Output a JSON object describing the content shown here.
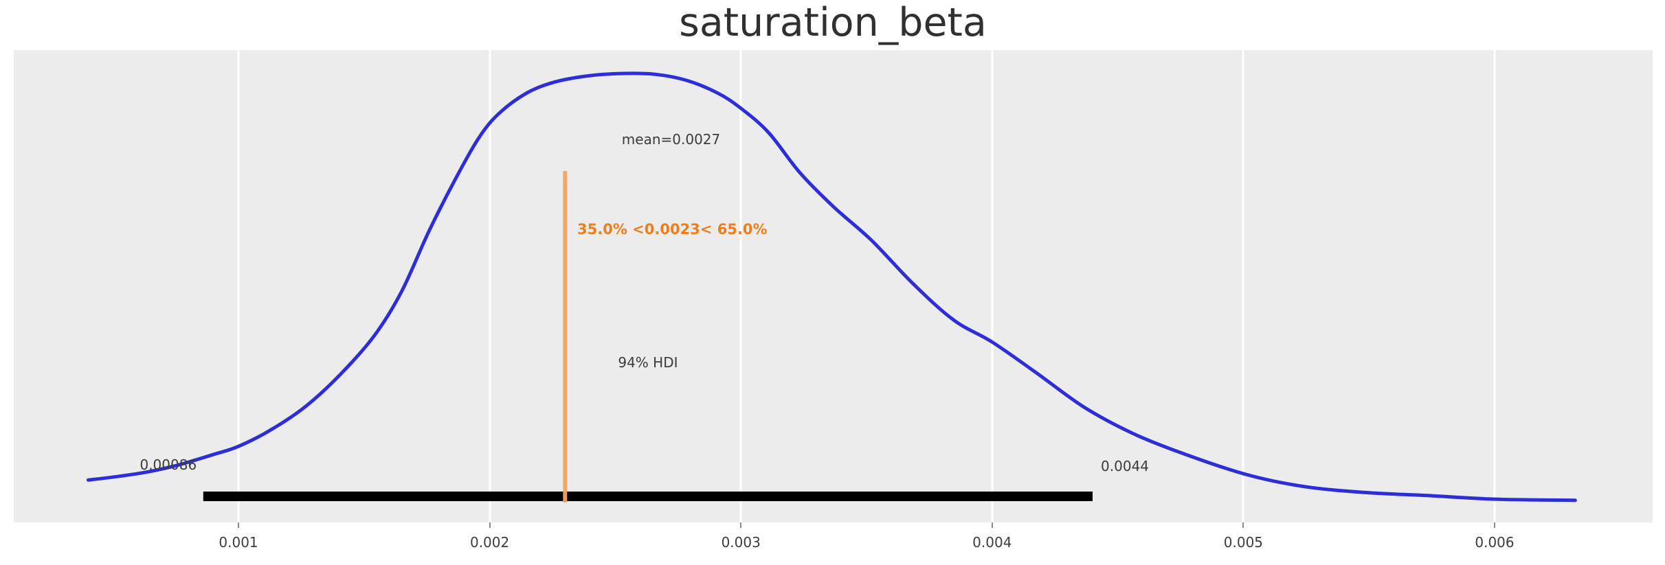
{
  "chart_data": {
    "type": "kde",
    "title": "saturation_beta",
    "xlabel": "",
    "ylabel": "",
    "grid": true,
    "legend": null,
    "xlim": [
      0.0001055,
      0.0066291
    ],
    "x_ticks": [
      0.001,
      0.002,
      0.003,
      0.004,
      0.005,
      0.006
    ],
    "x_tick_labels": [
      "0.001",
      "0.002",
      "0.003",
      "0.004",
      "0.005",
      "0.006"
    ],
    "mean": {
      "value": 0.0027,
      "label": "mean=0.0027"
    },
    "hdi": {
      "probability": "94%",
      "label": "94% HDI",
      "lower": 0.00086,
      "upper": 0.0044,
      "lower_label": "0.00086",
      "upper_label": "0.0044"
    },
    "ref_val": {
      "value": 0.0023,
      "pct_below": "35.0%",
      "pct_above": "65.0%",
      "label": "35.0% <0.0023< 65.0%"
    },
    "density": {
      "y_normalized": true,
      "points": [
        [
          0.000402,
          0.057
        ],
        [
          0.000517,
          0.065
        ],
        [
          0.00064,
          0.076
        ],
        [
          0.000762,
          0.092
        ],
        [
          0.000899,
          0.116
        ],
        [
          0.001,
          0.135
        ],
        [
          0.001131,
          0.174
        ],
        [
          0.001268,
          0.228
        ],
        [
          0.001404,
          0.301
        ],
        [
          0.001541,
          0.392
        ],
        [
          0.00165,
          0.495
        ],
        [
          0.001759,
          0.635
        ],
        [
          0.001868,
          0.76
        ],
        [
          0.001964,
          0.857
        ],
        [
          0.002046,
          0.912
        ],
        [
          0.002155,
          0.957
        ],
        [
          0.002264,
          0.981
        ],
        [
          0.0024,
          0.995
        ],
        [
          0.002537,
          1.0
        ],
        [
          0.00266,
          0.998
        ],
        [
          0.002783,
          0.984
        ],
        [
          0.002906,
          0.955
        ],
        [
          0.002998,
          0.92
        ],
        [
          0.00311,
          0.863
        ],
        [
          0.003233,
          0.771
        ],
        [
          0.00337,
          0.69
        ],
        [
          0.00352,
          0.613
        ],
        [
          0.003684,
          0.513
        ],
        [
          0.003847,
          0.428
        ],
        [
          0.004,
          0.377
        ],
        [
          0.004175,
          0.306
        ],
        [
          0.004366,
          0.226
        ],
        [
          0.004557,
          0.166
        ],
        [
          0.004748,
          0.121
        ],
        [
          0.00501,
          0.07
        ],
        [
          0.00524,
          0.042
        ],
        [
          0.005485,
          0.028
        ],
        [
          0.005731,
          0.021
        ],
        [
          0.005977,
          0.013
        ],
        [
          0.00614,
          0.011
        ],
        [
          0.006321,
          0.01
        ]
      ]
    }
  },
  "colors": {
    "curve": "#2e2ed9",
    "ref_line": "#f4a463",
    "ref_text": "#ef7d1c",
    "hdi_bar": "#000000",
    "plot_bg": "#ececec",
    "grid": "#ffffff",
    "annotation_text": "#3a3a3a",
    "tick_label": "#3d3d3d",
    "title": "#303030"
  }
}
